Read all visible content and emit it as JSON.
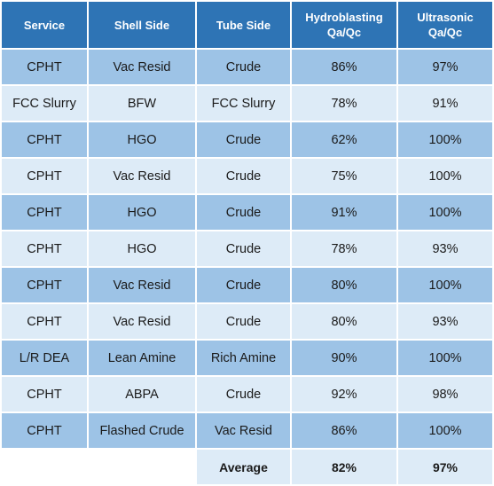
{
  "table": {
    "headers": [
      {
        "line1": "Service",
        "line2": ""
      },
      {
        "line1": "Shell Side",
        "line2": ""
      },
      {
        "line1": "Tube Side",
        "line2": ""
      },
      {
        "line1": "Hydroblasting",
        "line2": "Qa/Qc"
      },
      {
        "line1": "Ultrasonic",
        "line2": "Qa/Qc"
      }
    ],
    "rows": [
      {
        "service": "CPHT",
        "shell": "Vac Resid",
        "tube": "Crude",
        "hydro": "86%",
        "ultra": "97%"
      },
      {
        "service": "FCC Slurry",
        "shell": "BFW",
        "tube": "FCC Slurry",
        "hydro": "78%",
        "ultra": "91%"
      },
      {
        "service": "CPHT",
        "shell": "HGO",
        "tube": "Crude",
        "hydro": "62%",
        "ultra": "100%"
      },
      {
        "service": "CPHT",
        "shell": "Vac Resid",
        "tube": "Crude",
        "hydro": "75%",
        "ultra": "100%"
      },
      {
        "service": "CPHT",
        "shell": "HGO",
        "tube": "Crude",
        "hydro": "91%",
        "ultra": "100%"
      },
      {
        "service": "CPHT",
        "shell": "HGO",
        "tube": "Crude",
        "hydro": "78%",
        "ultra": "93%"
      },
      {
        "service": "CPHT",
        "shell": "Vac Resid",
        "tube": "Crude",
        "hydro": "80%",
        "ultra": "100%"
      },
      {
        "service": "CPHT",
        "shell": "Vac Resid",
        "tube": "Crude",
        "hydro": "80%",
        "ultra": "93%"
      },
      {
        "service": "L/R DEA",
        "shell": "Lean Amine",
        "tube": "Rich Amine",
        "hydro": "90%",
        "ultra": "100%"
      },
      {
        "service": "CPHT",
        "shell": "ABPA",
        "tube": "Crude",
        "hydro": "92%",
        "ultra": "98%"
      },
      {
        "service": "CPHT",
        "shell": "Flashed Crude",
        "tube": "Vac Resid",
        "hydro": "86%",
        "ultra": "100%"
      }
    ],
    "average": {
      "label": "Average",
      "hydro": "82%",
      "ultra": "97%"
    },
    "colors": {
      "header": "#2e74b5",
      "row_dark": "#9dc3e6",
      "row_light": "#ddebf7"
    }
  }
}
